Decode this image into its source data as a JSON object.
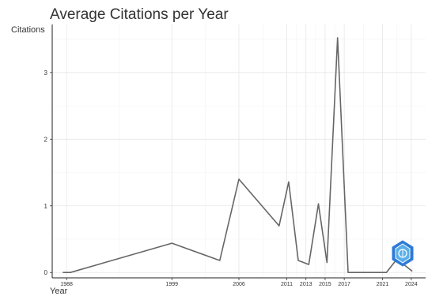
{
  "chart_data": {
    "type": "line",
    "title": "Average Citations per Year",
    "xlabel": "Year",
    "ylabel": "Citations",
    "x_ticks": [
      1988,
      1999,
      2006,
      2011,
      2013,
      2015,
      2017,
      2021,
      2024
    ],
    "y_ticks": [
      0,
      1,
      2,
      3
    ],
    "xlim": [
      1986.5,
      2025.5
    ],
    "ylim": [
      -0.08,
      3.72
    ],
    "grid": true,
    "legend": "none",
    "line_color": "#666666",
    "series": [
      {
        "x": [
          1987.6,
          1988.4,
          1999,
          2004,
          2006,
          2010.2,
          2011.2,
          2012.2,
          2013.3,
          2014.3,
          2015.2,
          2016.3,
          2017.4,
          2021.4,
          2022.5,
          2024.1
        ],
        "values": [
          0.0,
          0.0,
          0.44,
          0.18,
          1.4,
          0.7,
          1.36,
          0.18,
          0.12,
          1.03,
          0.15,
          3.52,
          0.0,
          0.0,
          0.2,
          0.02
        ]
      }
    ]
  }
}
